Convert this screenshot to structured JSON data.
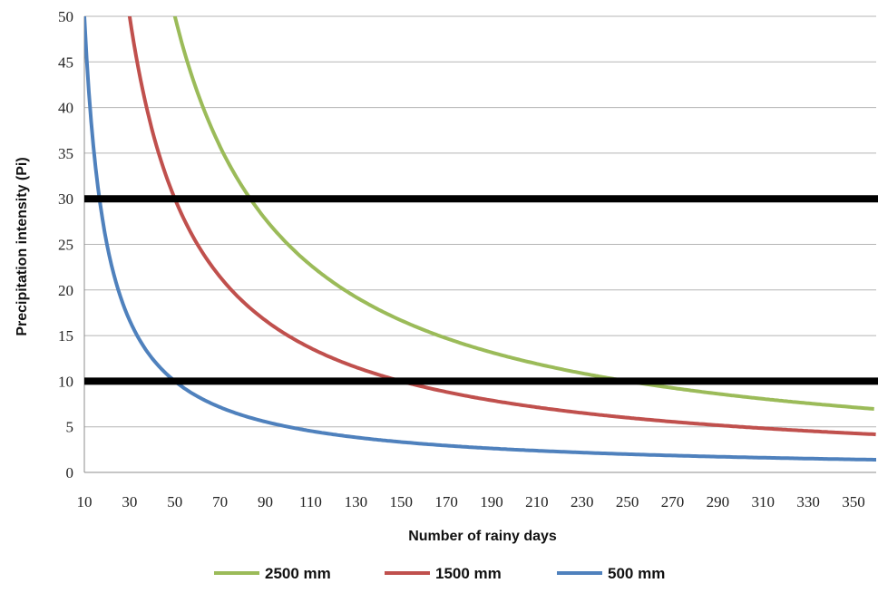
{
  "chart_data": {
    "type": "line",
    "xlabel": "Number of rainy days",
    "ylabel": "Precipitation intensity (Pi)",
    "xlim": [
      10,
      360
    ],
    "ylim": [
      0,
      50
    ],
    "x_ticks": [
      10,
      30,
      50,
      70,
      90,
      110,
      130,
      150,
      170,
      190,
      210,
      230,
      250,
      270,
      290,
      310,
      330,
      350
    ],
    "y_ticks": [
      0,
      5,
      10,
      15,
      20,
      25,
      30,
      35,
      40,
      45,
      50
    ],
    "grid": "horizontal",
    "legend": "bottom",
    "series": [
      {
        "name": "2500 mm",
        "total": 2500,
        "color": "#9bbb59"
      },
      {
        "name": "1500 mm",
        "total": 1500,
        "color": "#c0504d"
      },
      {
        "name": "500 mm",
        "total": 500,
        "color": "#4f81bd"
      }
    ],
    "threshold_lines": [
      {
        "y": 30,
        "color": "#000000"
      },
      {
        "y": 10,
        "color": "#000000"
      }
    ]
  }
}
